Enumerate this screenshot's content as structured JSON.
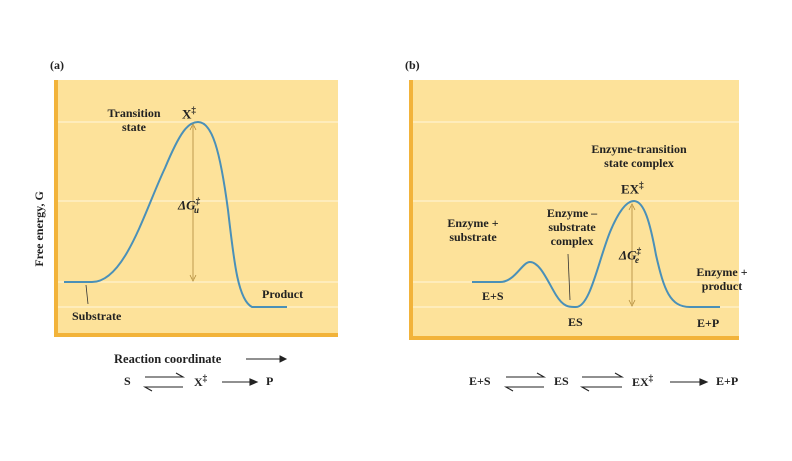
{
  "panel_a": {
    "label": "(a)",
    "transition_state": [
      "Transition",
      "state"
    ],
    "peak": "X",
    "peak_sup": "‡",
    "delta_g": "ΔG",
    "delta_g_sup": "‡",
    "delta_g_sub": "u",
    "substrate": "Substrate",
    "product": "Product",
    "y_axis": "Free energy, G",
    "x_axis": "Reaction coordinate",
    "equation": {
      "s": "S",
      "x": "X",
      "x_sup": "‡",
      "p": "P"
    }
  },
  "panel_b": {
    "label": "(b)",
    "complex_title": [
      "Enzyme-transition",
      "state complex"
    ],
    "peak": "EX",
    "peak_sup": "‡",
    "enzyme_substrate": [
      "Enzyme +",
      "substrate"
    ],
    "es_complex": [
      "Enzyme –",
      "substrate",
      "complex"
    ],
    "delta_g": "ΔG",
    "delta_g_sup": "‡",
    "delta_g_sub": "e",
    "enzyme_product": [
      "Enzyme +",
      "product"
    ],
    "es_label": "E+S",
    "es_min": "ES",
    "ep_label": "E+P",
    "equation": {
      "es": "E+S",
      "esc": "ES",
      "ex": "EX",
      "ex_sup": "‡",
      "ep": "E+P"
    }
  },
  "colors": {
    "panel": "#fde29a",
    "edge": "#f2b33a",
    "curve": "#4a90b8",
    "gridline": "#fff2c9"
  }
}
